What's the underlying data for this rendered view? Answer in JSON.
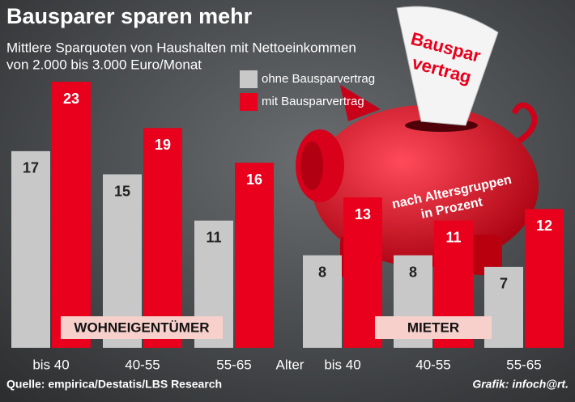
{
  "chart_data": {
    "type": "bar",
    "title": "Bausparer sparen mehr",
    "subtitle": [
      "Mittlere Sparquoten von Haushalten mit Nettoeinkommen",
      "von 2.000 bis 3.000 Euro/Monat"
    ],
    "categories": [
      "bis 40",
      "40-55",
      "55-65",
      "bis 40",
      "40-55",
      "55-65"
    ],
    "groups": [
      "WOHNEIGENTÜMER",
      "MIETER"
    ],
    "category_axis_label": "Alter",
    "series": [
      {
        "name": "ohne Bausparvertrag",
        "color": "#c8c8c8",
        "values": [
          17,
          15,
          11,
          8,
          8,
          7
        ]
      },
      {
        "name": "mit Bausparvertrag",
        "color": "#e8001c",
        "values": [
          23,
          19,
          16,
          13,
          11,
          12
        ]
      }
    ],
    "annotation": [
      "nach Altersgruppen",
      "in Prozent"
    ],
    "paper_text": [
      "Bauspar",
      "vertrag"
    ],
    "source": "Quelle: empirica/Destatis/LBS Research",
    "credit": "Grafik: infoch@rt."
  }
}
